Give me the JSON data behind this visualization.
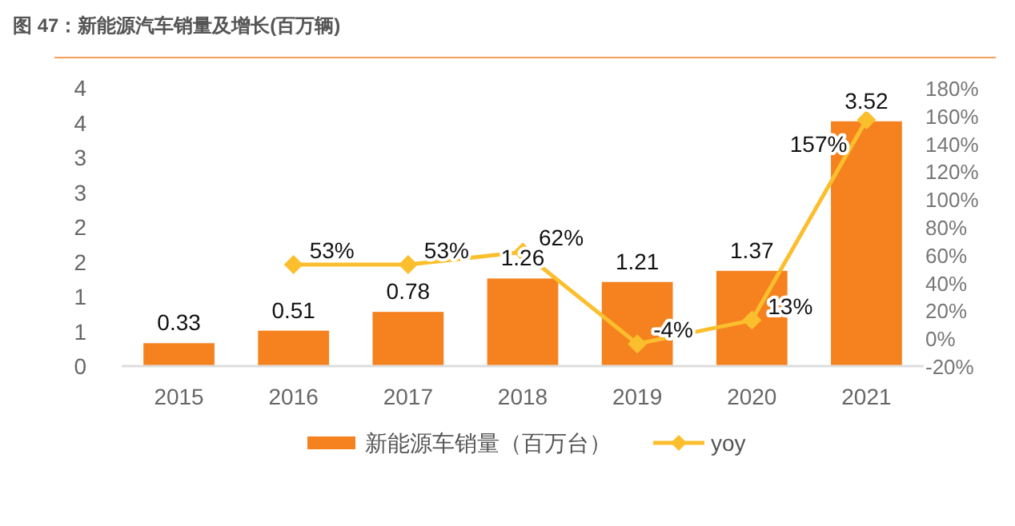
{
  "chart_data": {
    "type": "bar",
    "title": "图 47：新能源汽车销量及增长(百万辆)",
    "categories": [
      "2015",
      "2016",
      "2017",
      "2018",
      "2019",
      "2020",
      "2021"
    ],
    "series": [
      {
        "name": "新能源车销量（百万台）",
        "color": "#f5821f",
        "values": [
          0.33,
          0.51,
          0.78,
          1.26,
          1.21,
          1.37,
          3.52
        ]
      },
      {
        "name": "yoy",
        "type": "line",
        "axis": "y2",
        "color": "#fbbf2d",
        "marker": "diamond",
        "values": [
          null,
          53,
          53,
          62,
          -4,
          13,
          157
        ],
        "value_labels": [
          null,
          "53%",
          "53%",
          "62%",
          "-4%",
          "13%",
          "157%"
        ]
      }
    ],
    "ylim": [
      0,
      4
    ],
    "yticks": [
      0,
      {
        "value": 0.5,
        "label": "1"
      },
      1,
      {
        "value": 1.5,
        "label": "2"
      },
      2,
      {
        "value": 2.5,
        "label": "3"
      },
      3,
      {
        "value": 3.5,
        "label": "4"
      },
      4
    ],
    "y2lim": [
      -20,
      180
    ],
    "y2ticks": [
      {
        "value": -20,
        "label": "-20%"
      },
      {
        "value": 0,
        "label": "0%"
      },
      {
        "value": 20,
        "label": "20%"
      },
      {
        "value": 40,
        "label": "40%"
      },
      {
        "value": 60,
        "label": "60%"
      },
      {
        "value": 80,
        "label": "80%"
      },
      {
        "value": 100,
        "label": "100%"
      },
      {
        "value": 120,
        "label": "120%"
      },
      {
        "value": 140,
        "label": "140%"
      },
      {
        "value": 160,
        "label": "160%"
      },
      {
        "value": 180,
        "label": "180%"
      }
    ],
    "data_labels": true,
    "legend": "bottom",
    "grid": false
  }
}
